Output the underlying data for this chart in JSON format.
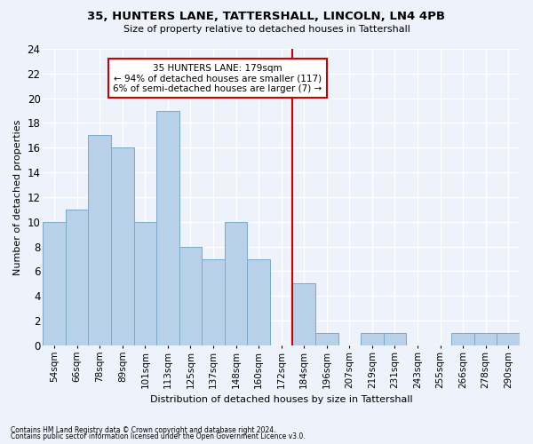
{
  "title": "35, HUNTERS LANE, TATTERSHALL, LINCOLN, LN4 4PB",
  "subtitle": "Size of property relative to detached houses in Tattershall",
  "xlabel": "Distribution of detached houses by size in Tattershall",
  "ylabel": "Number of detached properties",
  "bar_color": "#b8d0e8",
  "bar_edge_color": "#7aaac8",
  "background_color": "#eef2fb",
  "grid_color": "#ffffff",
  "categories": [
    "54sqm",
    "66sqm",
    "78sqm",
    "89sqm",
    "101sqm",
    "113sqm",
    "125sqm",
    "137sqm",
    "148sqm",
    "160sqm",
    "172sqm",
    "184sqm",
    "196sqm",
    "207sqm",
    "219sqm",
    "231sqm",
    "243sqm",
    "255sqm",
    "266sqm",
    "278sqm",
    "290sqm"
  ],
  "values": [
    10,
    11,
    17,
    16,
    10,
    19,
    8,
    7,
    10,
    7,
    0,
    5,
    1,
    0,
    1,
    1,
    0,
    0,
    1,
    1,
    1
  ],
  "ylim": [
    0,
    24
  ],
  "yticks": [
    0,
    2,
    4,
    6,
    8,
    10,
    12,
    14,
    16,
    18,
    20,
    22,
    24
  ],
  "vline_color": "#cc0000",
  "annotation_text": "35 HUNTERS LANE: 179sqm\n← 94% of detached houses are smaller (117)\n6% of semi-detached houses are larger (7) →",
  "annotation_box_color": "#ffffff",
  "annotation_box_edge": "#cc0000",
  "footnote1": "Contains HM Land Registry data © Crown copyright and database right 2024.",
  "footnote2": "Contains public sector information licensed under the Open Government Licence v3.0."
}
